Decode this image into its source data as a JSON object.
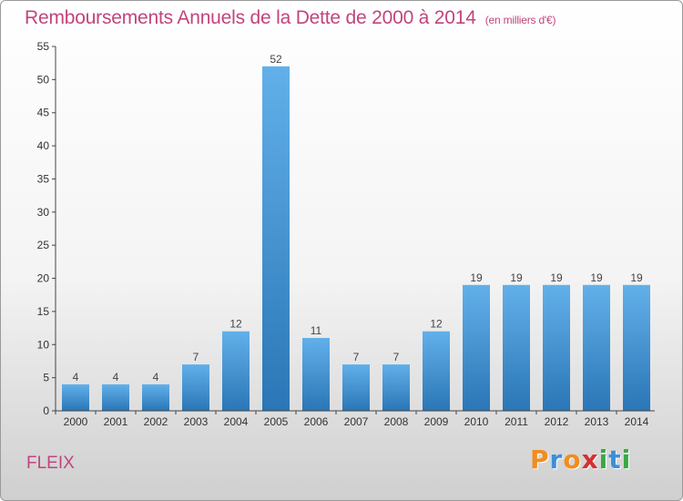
{
  "header": {
    "title": "Remboursements Annuels de la Dette de 2000 à 2014",
    "unit": "(en milliers d'€)"
  },
  "footer": {
    "commune": "FLEIX",
    "logo": {
      "letters": [
        "P",
        "r",
        "o",
        "x",
        "i",
        "t",
        "i"
      ],
      "colors": [
        "#f28c1e",
        "#3d8fd9",
        "#f28c1e",
        "#d43030",
        "#3aa845",
        "#3d8fd9",
        "#3aa845"
      ]
    }
  },
  "colors": {
    "bar_light": "#62b0ea",
    "bar_dark": "#2a76b6",
    "title": "#c2447e",
    "axis": "#444444",
    "grid": "#e6e6e6"
  },
  "chart_data": {
    "type": "bar",
    "title": "Remboursements Annuels de la Dette de 2000 à 2014",
    "xlabel": "",
    "ylabel": "",
    "categories": [
      "2000",
      "2001",
      "2002",
      "2003",
      "2004",
      "2005",
      "2006",
      "2007",
      "2008",
      "2009",
      "2010",
      "2011",
      "2012",
      "2013",
      "2014"
    ],
    "values": [
      4,
      4,
      4,
      7,
      12,
      52,
      11,
      7,
      7,
      12,
      19,
      19,
      19,
      19,
      19
    ],
    "ylim": [
      0,
      55
    ],
    "yticks": [
      0,
      5,
      10,
      15,
      20,
      25,
      30,
      35,
      40,
      45,
      50,
      55
    ],
    "data_labels": true,
    "grid": false,
    "legend": "none"
  }
}
